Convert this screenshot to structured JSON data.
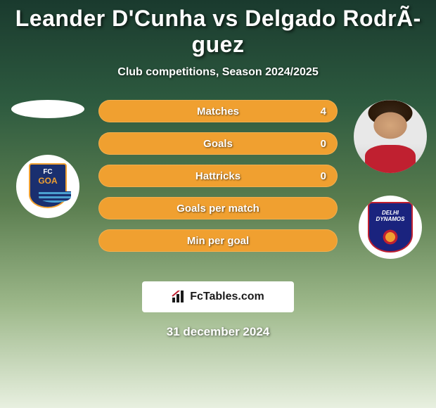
{
  "title": "Leander D'Cunha vs Delgado RodrÃ­guez",
  "subtitle": "Club competitions, Season 2024/2025",
  "date": "31 december 2024",
  "branding_text": "FcTables.com",
  "colors": {
    "left_fill": "#f0a030",
    "right_fill": "#3a7a4a",
    "text": "#ffffff"
  },
  "left": {
    "player_name": "Leander D'Cunha",
    "club_name": "FC Goa",
    "club_text_top": "FC",
    "club_text_main": "GOA"
  },
  "right": {
    "player_name": "Delgado Rodríguez",
    "club_name": "Delhi Dynamos",
    "club_text_top": "DELHI",
    "club_text_main": "DYNAMOS"
  },
  "stats": [
    {
      "label": "Matches",
      "value_right": "4",
      "split_pct": 100
    },
    {
      "label": "Goals",
      "value_right": "0",
      "split_pct": 100
    },
    {
      "label": "Hattricks",
      "value_right": "0",
      "split_pct": 100
    },
    {
      "label": "Goals per match",
      "value_right": "",
      "split_pct": 100
    },
    {
      "label": "Min per goal",
      "value_right": "",
      "split_pct": 100
    }
  ]
}
